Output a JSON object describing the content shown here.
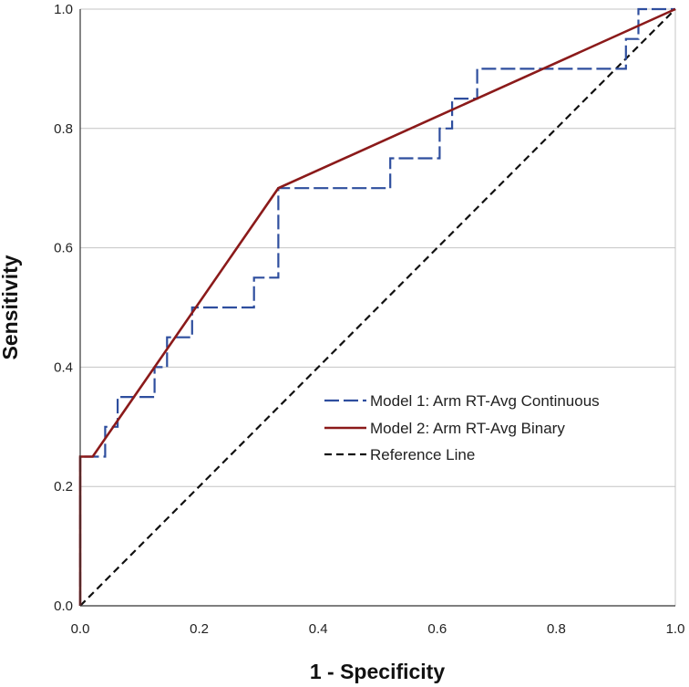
{
  "chart_data": {
    "type": "line",
    "title": "",
    "xlabel": "1 - Specificity",
    "ylabel": "Sensitivity",
    "xlim": [
      0,
      1
    ],
    "ylim": [
      0,
      1
    ],
    "xticks": [
      "0.0",
      "0.2",
      "0.4",
      "0.6",
      "0.8",
      "1.0"
    ],
    "yticks": [
      "0.0",
      "0.2",
      "0.4",
      "0.6",
      "0.8",
      "1.0"
    ],
    "grid": "horizontal",
    "legend_position": "center-right",
    "series": [
      {
        "name": "Model 1: Arm RT-Avg Continuous",
        "color": "#2e4e9e",
        "style": "dashed",
        "x": [
          0,
          0,
          0.042,
          0.042,
          0.063,
          0.063,
          0.125,
          0.125,
          0.146,
          0.146,
          0.188,
          0.188,
          0.292,
          0.292,
          0.333,
          0.333,
          0.521,
          0.521,
          0.604,
          0.604,
          0.625,
          0.625,
          0.667,
          0.667,
          0.917,
          0.917,
          0.938,
          0.938,
          1.0
        ],
        "y": [
          0,
          0.25,
          0.25,
          0.3,
          0.3,
          0.35,
          0.35,
          0.4,
          0.4,
          0.45,
          0.45,
          0.5,
          0.5,
          0.55,
          0.55,
          0.7,
          0.7,
          0.75,
          0.75,
          0.8,
          0.8,
          0.85,
          0.85,
          0.9,
          0.9,
          0.95,
          0.95,
          1.0,
          1.0
        ]
      },
      {
        "name": "Model 2: Arm RT-Avg Binary",
        "color": "#8b1a1a",
        "style": "solid",
        "x": [
          0,
          0,
          0.021,
          0.333,
          1.0
        ],
        "y": [
          0,
          0.25,
          0.25,
          0.7,
          1.0
        ]
      },
      {
        "name": "Reference Line",
        "color": "#111111",
        "style": "dashed",
        "x": [
          0,
          1
        ],
        "y": [
          0,
          1
        ]
      }
    ]
  }
}
